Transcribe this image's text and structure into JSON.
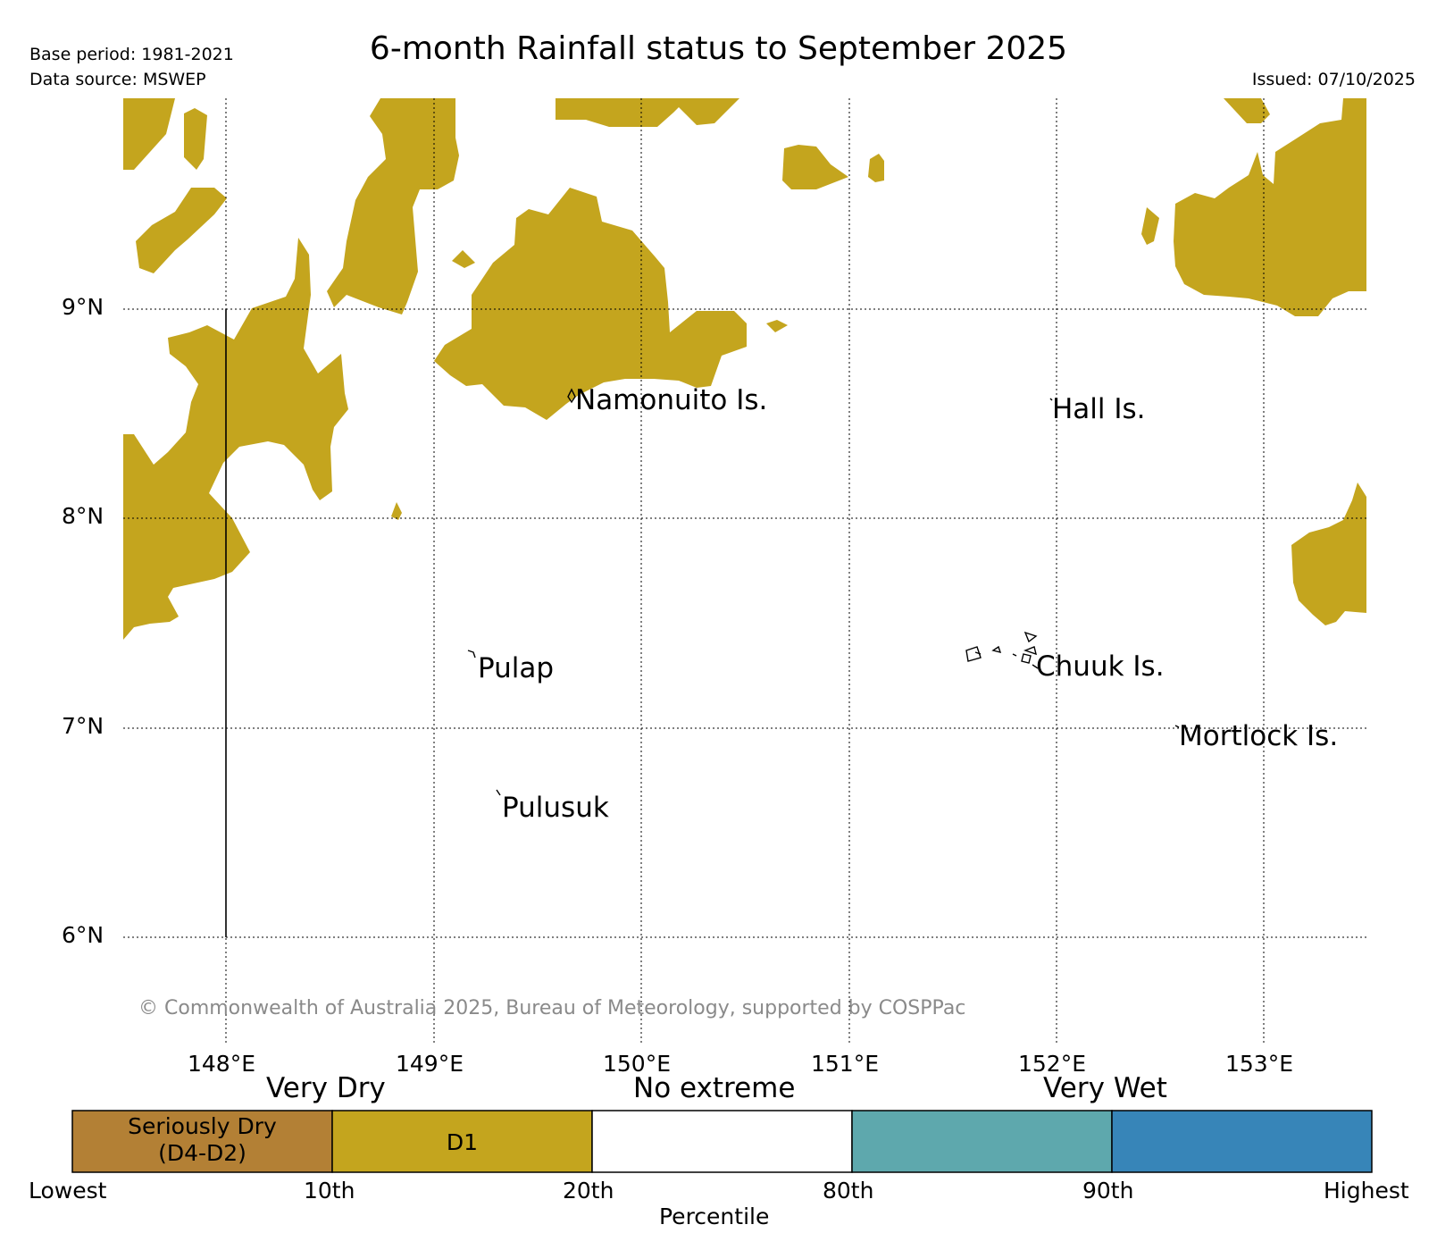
{
  "header": {
    "base_period": "Base period: 1981-2021",
    "data_source": "Data source: MSWEP",
    "title": "6-month Rainfall status to September 2025",
    "issued": "Issued: 07/10/2025"
  },
  "map": {
    "lat_labels": [
      "9°N",
      "8°N",
      "7°N",
      "6°N"
    ],
    "lon_labels": [
      "148°E",
      "149°E",
      "150°E",
      "151°E",
      "152°E",
      "153°E"
    ],
    "places": [
      "Namonuito Is.",
      "Hall Is.",
      "Pulap",
      "Chuuk Is.",
      "Mortlock Is.",
      "Pulusuk"
    ],
    "copyright": "© Commonwealth of Australia 2025, Bureau of Meteorology, supported by COSPPac",
    "colors": {
      "d1": "#c4a51e",
      "seriously_dry": "#b38035",
      "very_wet_1": "#5ea8ad",
      "very_wet_2": "#3785b8",
      "no_extreme": "#ffffff"
    }
  },
  "legend": {
    "headings": [
      "Very Dry",
      "No extreme",
      "Very Wet"
    ],
    "boxes": [
      "Seriously Dry\n(D4-D2)",
      "D1",
      "",
      "",
      ""
    ],
    "percentiles": [
      "Lowest",
      "10th",
      "20th",
      "80th",
      "90th",
      "Highest"
    ],
    "axis_label": "Percentile"
  }
}
